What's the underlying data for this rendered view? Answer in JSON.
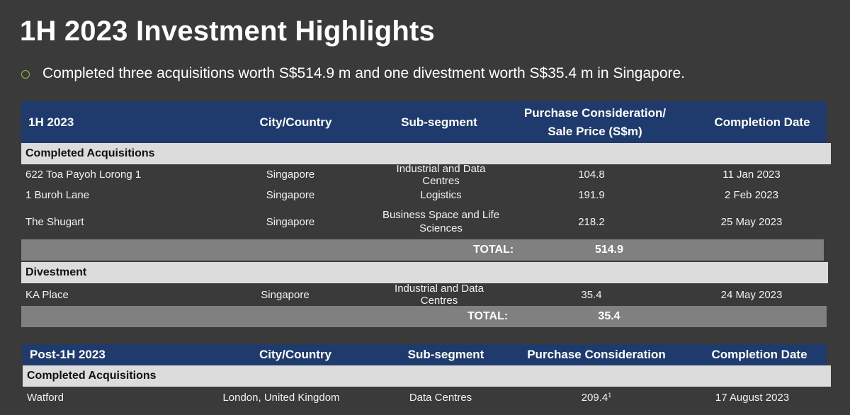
{
  "title": "1H 2023 Investment Highlights",
  "bullet": "Completed three acquisitions worth S$514.9 m and one divestment worth S$35.4 m in Singapore.",
  "table1": {
    "headers": [
      "1H 2023",
      "City/Country",
      "Sub-segment",
      "Purchase Consideration/",
      "Sale Price  (S$m)",
      "Completion Date"
    ],
    "section_acq": "Completed Acquisitions",
    "acq_rows": [
      [
        "622 Toa Payoh Lorong 1",
        "Singapore",
        "Industrial and Data Centres",
        "104.8",
        "11 Jan 2023"
      ],
      [
        "1 Buroh Lane",
        "Singapore",
        "Logistics",
        "191.9",
        "2 Feb 2023"
      ],
      [
        "The Shugart",
        "Singapore",
        "Business Space and Life",
        "218.2",
        "25 May 2023"
      ]
    ],
    "shugart_sub2": "Sciences",
    "total_label": "TOTAL:",
    "acq_total": "514.9",
    "section_div": "Divestment",
    "div_row": [
      "KA Place",
      "Singapore",
      "Industrial and Data Centres",
      "35.4",
      "24 May 2023"
    ],
    "div_total": "35.4"
  },
  "table2": {
    "headers": [
      "Post-1H 2023",
      "City/Country",
      "Sub-segment",
      "Purchase Consideration",
      "Completion Date"
    ],
    "section_acq": "Completed Acquisitions",
    "row": [
      "Watford",
      "London, United Kingdom",
      "Data Centres",
      "209.4",
      "17 August 2023"
    ],
    "footnote": "1"
  }
}
